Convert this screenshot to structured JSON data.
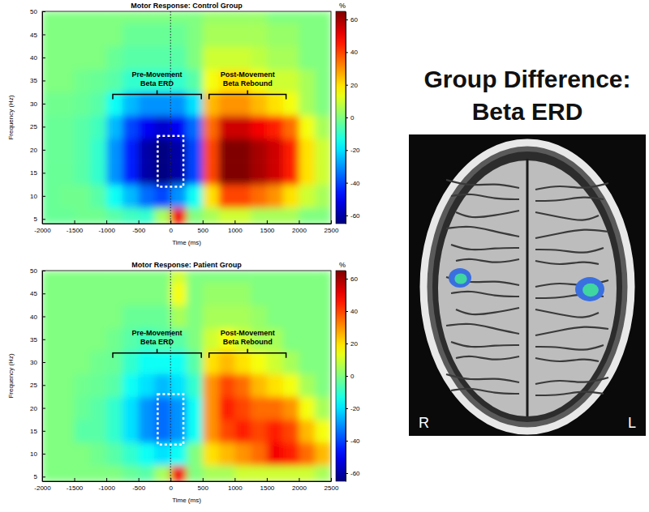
{
  "chart_data": [
    {
      "type": "heatmap",
      "title": "Motor Response: Control Group",
      "x_label": "Time (ms)",
      "y_label": "Frequency (Hz)",
      "x_edges": [
        -2000,
        -1750,
        -1500,
        -1250,
        -1000,
        -750,
        -500,
        -250,
        0,
        250,
        500,
        750,
        1000,
        1250,
        1500,
        1750,
        2000,
        2250,
        2500
      ],
      "y_edges": [
        4,
        7.5,
        12.5,
        17.5,
        22.5,
        27.5,
        32.5,
        37.5,
        42.5,
        47.5,
        50
      ],
      "z": [
        [
          -3,
          -3,
          -2,
          -2,
          -5,
          -8,
          -10,
          5,
          50,
          0,
          5,
          10,
          10,
          5,
          5,
          5,
          0,
          0
        ],
        [
          -3,
          -2,
          -2,
          -5,
          -15,
          -25,
          -35,
          -40,
          -30,
          -15,
          20,
          40,
          40,
          35,
          30,
          20,
          10,
          5
        ],
        [
          -3,
          -3,
          -5,
          -10,
          -30,
          -45,
          -60,
          -65,
          -60,
          -40,
          40,
          65,
          65,
          60,
          55,
          45,
          20,
          10
        ],
        [
          -3,
          -3,
          -5,
          -10,
          -30,
          -45,
          -60,
          -65,
          -60,
          -40,
          40,
          65,
          65,
          60,
          55,
          45,
          20,
          10
        ],
        [
          -3,
          -3,
          -5,
          -8,
          -25,
          -40,
          -50,
          -55,
          -50,
          -35,
          35,
          55,
          55,
          50,
          45,
          35,
          15,
          5
        ],
        [
          -2,
          -2,
          -3,
          -5,
          -15,
          -25,
          -30,
          -30,
          -30,
          -20,
          25,
          30,
          30,
          25,
          20,
          15,
          5,
          0
        ],
        [
          0,
          0,
          -2,
          -3,
          -5,
          -10,
          -10,
          -10,
          -10,
          -5,
          15,
          20,
          20,
          15,
          10,
          10,
          5,
          0
        ],
        [
          0,
          0,
          0,
          0,
          -3,
          -5,
          -5,
          -5,
          -5,
          0,
          10,
          10,
          10,
          8,
          5,
          5,
          0,
          0
        ],
        [
          0,
          0,
          0,
          0,
          0,
          -3,
          -3,
          -3,
          -3,
          0,
          5,
          5,
          5,
          5,
          3,
          3,
          0,
          0
        ],
        [
          0,
          0,
          0,
          0,
          0,
          0,
          0,
          0,
          0,
          0,
          3,
          3,
          3,
          3,
          0,
          0,
          0,
          0
        ]
      ],
      "xlim": [
        -2000,
        2500
      ],
      "ylim": [
        4,
        50
      ],
      "xticks": [
        -2000,
        -1500,
        -1000,
        -500,
        0,
        500,
        1000,
        1500,
        2000,
        2500
      ],
      "yticks": [
        5,
        10,
        15,
        20,
        25,
        30,
        35,
        40,
        45,
        50
      ],
      "colorbar": {
        "label": "%",
        "range": [
          -65,
          65
        ],
        "ticks": [
          -60,
          -40,
          -20,
          0,
          20,
          40,
          60
        ]
      },
      "annotations": [
        {
          "text": [
            "Pre-Movement",
            "Beta ERD"
          ],
          "x": [
            -900,
            480
          ],
          "y": 32
        },
        {
          "text": [
            "Post-Movement",
            "Beta Rebound"
          ],
          "x": [
            600,
            1800
          ],
          "y": 32
        }
      ],
      "roi": {
        "x": [
          -200,
          200
        ],
        "y": [
          12,
          23
        ]
      },
      "event_line": 0
    },
    {
      "type": "heatmap",
      "title": "Motor Response: Patient Group",
      "x_label": "Time (ms)",
      "y_label": "Frequency (Hz)",
      "x_edges": [
        -2000,
        -1750,
        -1500,
        -1250,
        -1000,
        -750,
        -500,
        -250,
        0,
        250,
        500,
        750,
        1000,
        1250,
        1500,
        1750,
        2000,
        2250,
        2500
      ],
      "y_edges": [
        4,
        7.5,
        12.5,
        17.5,
        22.5,
        27.5,
        32.5,
        37.5,
        42.5,
        47.5,
        50
      ],
      "z": [
        [
          0,
          0,
          0,
          0,
          0,
          -3,
          -5,
          5,
          50,
          0,
          5,
          5,
          10,
          10,
          10,
          10,
          10,
          5
        ],
        [
          0,
          0,
          0,
          -2,
          -5,
          -10,
          -15,
          -20,
          -15,
          0,
          20,
          25,
          30,
          35,
          50,
          45,
          35,
          25
        ],
        [
          0,
          0,
          -5,
          -5,
          -10,
          -20,
          -30,
          -35,
          -30,
          -15,
          30,
          40,
          45,
          40,
          45,
          40,
          25,
          15
        ],
        [
          0,
          0,
          -3,
          -5,
          -10,
          -20,
          -30,
          -35,
          -30,
          -15,
          30,
          45,
          40,
          35,
          35,
          30,
          15,
          5
        ],
        [
          0,
          0,
          -2,
          -3,
          -5,
          -15,
          -20,
          -25,
          -20,
          -10,
          30,
          40,
          35,
          25,
          20,
          15,
          5,
          0
        ],
        [
          0,
          0,
          0,
          -2,
          -3,
          -10,
          -15,
          -15,
          -15,
          -5,
          20,
          25,
          20,
          15,
          10,
          5,
          0,
          0
        ],
        [
          0,
          0,
          0,
          0,
          -2,
          -5,
          -8,
          -5,
          -5,
          0,
          10,
          15,
          10,
          5,
          5,
          0,
          0,
          0
        ],
        [
          0,
          0,
          0,
          0,
          0,
          -3,
          -3,
          -3,
          5,
          0,
          5,
          5,
          5,
          3,
          0,
          0,
          0,
          0
        ],
        [
          0,
          0,
          0,
          0,
          0,
          0,
          0,
          0,
          15,
          0,
          3,
          3,
          3,
          0,
          0,
          0,
          0,
          0
        ],
        [
          0,
          0,
          0,
          0,
          0,
          0,
          0,
          0,
          10,
          0,
          0,
          0,
          0,
          0,
          0,
          0,
          0,
          0
        ]
      ],
      "xlim": [
        -2000,
        2500
      ],
      "ylim": [
        4,
        50
      ],
      "xticks": [
        -2000,
        -1500,
        -1000,
        -500,
        0,
        500,
        1000,
        1500,
        2000,
        2500
      ],
      "yticks": [
        5,
        10,
        15,
        20,
        25,
        30,
        35,
        40,
        45,
        50
      ],
      "colorbar": {
        "label": "%",
        "range": [
          -65,
          65
        ],
        "ticks": [
          -60,
          -40,
          -20,
          0,
          20,
          40,
          60
        ]
      },
      "annotations": [
        {
          "text": [
            "Pre-Movement",
            "Beta ERD"
          ],
          "x": [
            -900,
            480
          ],
          "y": 32
        },
        {
          "text": [
            "Post-Movement",
            "Beta Rebound"
          ],
          "x": [
            600,
            1800
          ],
          "y": 32
        }
      ],
      "roi": {
        "x": [
          -200,
          200
        ],
        "y": [
          12,
          23
        ]
      },
      "event_line": 0
    }
  ],
  "panel": {
    "title": [
      "Group Difference:",
      "Beta ERD"
    ],
    "left_label": "R",
    "right_label": "L"
  }
}
